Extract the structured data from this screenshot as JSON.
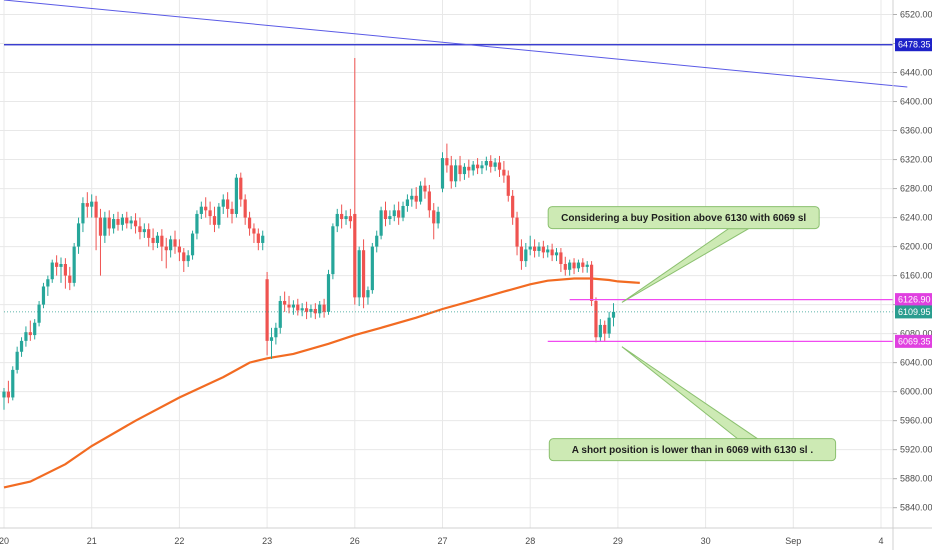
{
  "chart_data": {
    "type": "candlestick",
    "y_axis": {
      "ticks": [
        5840,
        5880,
        5920,
        5960,
        6000,
        6040,
        6080,
        6120,
        6160,
        6200,
        6240,
        6280,
        6320,
        6360,
        6400,
        6440,
        6480,
        6520
      ],
      "tick_labels": [
        "5840.00",
        "5880.00",
        "5920.00",
        "5960.00",
        "6000.00",
        "6040.00",
        "6080.00",
        "6120.00",
        "6160.00",
        "6200.00",
        "6240.00",
        "6280.00",
        "6320.00",
        "6360.00",
        "6400.00",
        "6440.00",
        "6480.00",
        "6520.00"
      ],
      "range": [
        5812,
        6540
      ],
      "position": "right"
    },
    "x_axis": {
      "labels": [
        "20",
        "21",
        "22",
        "23",
        "26",
        "27",
        "28",
        "29",
        "30",
        "Sep",
        "4"
      ],
      "label_positions": [
        0,
        1,
        2,
        3,
        4,
        5,
        6,
        7,
        8,
        9,
        10
      ]
    },
    "price_tags": [
      {
        "value": 6478.35,
        "label": "6478.35",
        "color": "#1e22c8"
      },
      {
        "value": 6126.9,
        "label": "6126.90",
        "color": "#e040e0"
      },
      {
        "value": 6109.95,
        "label": "6109.95",
        "color": "#2a9d8f"
      },
      {
        "value": 6069.35,
        "label": "6069.35",
        "color": "#e040e0"
      }
    ],
    "horizontal_lines": [
      {
        "value": 6478.35,
        "color": "#1e22c8",
        "from": 0.0,
        "to": 10.3
      },
      {
        "value": 6126.9,
        "color": "#f04af0",
        "from": 6.45,
        "to": 10.3
      },
      {
        "value": 6069.35,
        "color": "#f04af0",
        "from": 6.2,
        "to": 10.3
      },
      {
        "value": 6109.95,
        "color": "#2a9d8f",
        "from": 0.0,
        "to": 10.3,
        "dotted": true
      }
    ],
    "trend_line": {
      "color": "#5a5ae6",
      "points": [
        [
          0.0,
          6540
        ],
        [
          10.3,
          6420
        ]
      ]
    },
    "moving_average": {
      "color": "#f26b22",
      "points": [
        [
          0.0,
          5868
        ],
        [
          0.3,
          5876
        ],
        [
          0.7,
          5900
        ],
        [
          1.0,
          5925
        ],
        [
          1.5,
          5960
        ],
        [
          2.0,
          5992
        ],
        [
          2.5,
          6020
        ],
        [
          2.8,
          6040
        ],
        [
          3.0,
          6046
        ],
        [
          3.3,
          6052
        ],
        [
          3.7,
          6066
        ],
        [
          4.0,
          6078
        ],
        [
          4.3,
          6088
        ],
        [
          4.7,
          6102
        ],
        [
          5.0,
          6114
        ],
        [
          5.3,
          6124
        ],
        [
          5.7,
          6138
        ],
        [
          6.0,
          6148
        ],
        [
          6.2,
          6153
        ],
        [
          6.5,
          6156
        ],
        [
          6.7,
          6156
        ],
        [
          6.9,
          6154
        ],
        [
          7.0,
          6152
        ],
        [
          7.25,
          6150
        ]
      ]
    },
    "candles": [
      {
        "x": 0.0,
        "o": 5992,
        "h": 6005,
        "c": 6000,
        "l": 5975
      },
      {
        "x": 0.05,
        "o": 6000,
        "h": 6015,
        "c": 5992,
        "l": 5984
      },
      {
        "x": 0.1,
        "o": 5992,
        "h": 6035,
        "c": 6030,
        "l": 5988
      },
      {
        "x": 0.15,
        "o": 6030,
        "h": 6062,
        "c": 6055,
        "l": 6025
      },
      {
        "x": 0.2,
        "o": 6055,
        "h": 6075,
        "c": 6070,
        "l": 6048
      },
      {
        "x": 0.25,
        "o": 6070,
        "h": 6090,
        "c": 6082,
        "l": 6062
      },
      {
        "x": 0.3,
        "o": 6082,
        "h": 6098,
        "c": 6078,
        "l": 6070
      },
      {
        "x": 0.35,
        "o": 6078,
        "h": 6100,
        "c": 6095,
        "l": 6072
      },
      {
        "x": 0.4,
        "o": 6095,
        "h": 6125,
        "c": 6120,
        "l": 6090
      },
      {
        "x": 0.45,
        "o": 6120,
        "h": 6150,
        "c": 6145,
        "l": 6115
      },
      {
        "x": 0.5,
        "o": 6145,
        "h": 6160,
        "c": 6155,
        "l": 6132
      },
      {
        "x": 0.55,
        "o": 6155,
        "h": 6182,
        "c": 6178,
        "l": 6150
      },
      {
        "x": 0.6,
        "o": 6178,
        "h": 6188,
        "c": 6172,
        "l": 6160
      },
      {
        "x": 0.65,
        "o": 6172,
        "h": 6185,
        "c": 6176,
        "l": 6150
      },
      {
        "x": 0.7,
        "o": 6176,
        "h": 6184,
        "c": 6160,
        "l": 6142
      },
      {
        "x": 0.75,
        "o": 6160,
        "h": 6172,
        "c": 6150,
        "l": 6140
      },
      {
        "x": 0.8,
        "o": 6150,
        "h": 6205,
        "c": 6200,
        "l": 6145
      },
      {
        "x": 0.85,
        "o": 6200,
        "h": 6240,
        "c": 6232,
        "l": 6190
      },
      {
        "x": 0.9,
        "o": 6232,
        "h": 6268,
        "c": 6260,
        "l": 6220
      },
      {
        "x": 0.95,
        "o": 6260,
        "h": 6275,
        "c": 6255,
        "l": 6240
      },
      {
        "x": 1.0,
        "o": 6255,
        "h": 6272,
        "c": 6262,
        "l": 6240
      },
      {
        "x": 1.05,
        "o": 6262,
        "h": 6270,
        "c": 6240,
        "l": 6195
      },
      {
        "x": 1.1,
        "o": 6240,
        "h": 6252,
        "c": 6215,
        "l": 6160
      },
      {
        "x": 1.15,
        "o": 6215,
        "h": 6248,
        "c": 6240,
        "l": 6205
      },
      {
        "x": 1.2,
        "o": 6240,
        "h": 6250,
        "c": 6225,
        "l": 6215
      },
      {
        "x": 1.25,
        "o": 6225,
        "h": 6245,
        "c": 6238,
        "l": 6218
      },
      {
        "x": 1.3,
        "o": 6238,
        "h": 6248,
        "c": 6230,
        "l": 6222
      },
      {
        "x": 1.35,
        "o": 6230,
        "h": 6245,
        "c": 6240,
        "l": 6222
      },
      {
        "x": 1.4,
        "o": 6240,
        "h": 6248,
        "c": 6232,
        "l": 6225
      },
      {
        "x": 1.45,
        "o": 6232,
        "h": 6242,
        "c": 6236,
        "l": 6224
      },
      {
        "x": 1.5,
        "o": 6236,
        "h": 6246,
        "c": 6228,
        "l": 6218
      },
      {
        "x": 1.55,
        "o": 6228,
        "h": 6240,
        "c": 6220,
        "l": 6210
      },
      {
        "x": 1.6,
        "o": 6220,
        "h": 6232,
        "c": 6224,
        "l": 6212
      },
      {
        "x": 1.65,
        "o": 6224,
        "h": 6232,
        "c": 6212,
        "l": 6200
      },
      {
        "x": 1.7,
        "o": 6212,
        "h": 6225,
        "c": 6205,
        "l": 6195
      },
      {
        "x": 1.75,
        "o": 6205,
        "h": 6220,
        "c": 6215,
        "l": 6198
      },
      {
        "x": 1.8,
        "o": 6215,
        "h": 6224,
        "c": 6200,
        "l": 6180
      },
      {
        "x": 1.85,
        "o": 6200,
        "h": 6212,
        "c": 6195,
        "l": 6170
      },
      {
        "x": 1.9,
        "o": 6195,
        "h": 6215,
        "c": 6210,
        "l": 6185
      },
      {
        "x": 1.95,
        "o": 6210,
        "h": 6222,
        "c": 6200,
        "l": 6190
      },
      {
        "x": 2.0,
        "o": 6200,
        "h": 6210,
        "c": 6192,
        "l": 6180
      },
      {
        "x": 2.05,
        "o": 6192,
        "h": 6198,
        "c": 6180,
        "l": 6165
      },
      {
        "x": 2.1,
        "o": 6180,
        "h": 6195,
        "c": 6188,
        "l": 6172
      },
      {
        "x": 2.15,
        "o": 6188,
        "h": 6222,
        "c": 6218,
        "l": 6182
      },
      {
        "x": 2.2,
        "o": 6218,
        "h": 6250,
        "c": 6245,
        "l": 6210
      },
      {
        "x": 2.25,
        "o": 6245,
        "h": 6262,
        "c": 6255,
        "l": 6238
      },
      {
        "x": 2.3,
        "o": 6255,
        "h": 6268,
        "c": 6250,
        "l": 6240
      },
      {
        "x": 2.35,
        "o": 6250,
        "h": 6262,
        "c": 6242,
        "l": 6230
      },
      {
        "x": 2.4,
        "o": 6242,
        "h": 6255,
        "c": 6230,
        "l": 6220
      },
      {
        "x": 2.45,
        "o": 6230,
        "h": 6260,
        "c": 6255,
        "l": 6225
      },
      {
        "x": 2.5,
        "o": 6255,
        "h": 6272,
        "c": 6265,
        "l": 6245
      },
      {
        "x": 2.55,
        "o": 6265,
        "h": 6275,
        "c": 6252,
        "l": 6240
      },
      {
        "x": 2.6,
        "o": 6252,
        "h": 6262,
        "c": 6245,
        "l": 6232
      },
      {
        "x": 2.65,
        "o": 6245,
        "h": 6300,
        "c": 6295,
        "l": 6240
      },
      {
        "x": 2.7,
        "o": 6295,
        "h": 6302,
        "c": 6265,
        "l": 6255
      },
      {
        "x": 2.75,
        "o": 6265,
        "h": 6272,
        "c": 6240,
        "l": 6230
      },
      {
        "x": 2.8,
        "o": 6240,
        "h": 6248,
        "c": 6225,
        "l": 6215
      },
      {
        "x": 2.85,
        "o": 6225,
        "h": 6232,
        "c": 6218,
        "l": 6205
      },
      {
        "x": 2.9,
        "o": 6218,
        "h": 6225,
        "c": 6205,
        "l": 6195
      },
      {
        "x": 2.95,
        "o": 6205,
        "h": 6222,
        "c": 6215,
        "l": 6195
      },
      {
        "x": 3.0,
        "o": 6155,
        "h": 6165,
        "c": 6070,
        "l": 6050
      },
      {
        "x": 3.05,
        "o": 6070,
        "h": 6088,
        "c": 6075,
        "l": 6045
      },
      {
        "x": 3.1,
        "o": 6075,
        "h": 6095,
        "c": 6088,
        "l": 6065
      },
      {
        "x": 3.15,
        "o": 6088,
        "h": 6132,
        "c": 6125,
        "l": 6080
      },
      {
        "x": 3.2,
        "o": 6125,
        "h": 6138,
        "c": 6120,
        "l": 6110
      },
      {
        "x": 3.25,
        "o": 6120,
        "h": 6132,
        "c": 6116,
        "l": 6108
      },
      {
        "x": 3.3,
        "o": 6116,
        "h": 6126,
        "c": 6120,
        "l": 6106
      },
      {
        "x": 3.35,
        "o": 6120,
        "h": 6128,
        "c": 6112,
        "l": 6105
      },
      {
        "x": 3.4,
        "o": 6112,
        "h": 6122,
        "c": 6115,
        "l": 6104
      },
      {
        "x": 3.45,
        "o": 6115,
        "h": 6124,
        "c": 6110,
        "l": 6100
      },
      {
        "x": 3.5,
        "o": 6110,
        "h": 6120,
        "c": 6114,
        "l": 6102
      },
      {
        "x": 3.55,
        "o": 6114,
        "h": 6122,
        "c": 6108,
        "l": 6100
      },
      {
        "x": 3.6,
        "o": 6108,
        "h": 6125,
        "c": 6120,
        "l": 6102
      },
      {
        "x": 3.65,
        "o": 6120,
        "h": 6128,
        "c": 6110,
        "l": 6102
      },
      {
        "x": 3.7,
        "o": 6110,
        "h": 6168,
        "c": 6162,
        "l": 6106
      },
      {
        "x": 3.75,
        "o": 6162,
        "h": 6232,
        "c": 6228,
        "l": 6155
      },
      {
        "x": 3.8,
        "o": 6228,
        "h": 6252,
        "c": 6245,
        "l": 6220
      },
      {
        "x": 3.85,
        "o": 6245,
        "h": 6258,
        "c": 6238,
        "l": 6225
      },
      {
        "x": 3.9,
        "o": 6238,
        "h": 6250,
        "c": 6242,
        "l": 6230
      },
      {
        "x": 3.95,
        "o": 6242,
        "h": 6252,
        "c": 6235,
        "l": 6225
      },
      {
        "x": 4.0,
        "o": 6245,
        "h": 6460,
        "c": 6130,
        "l": 6120
      },
      {
        "x": 4.05,
        "o": 6130,
        "h": 6200,
        "c": 6195,
        "l": 6118
      },
      {
        "x": 4.1,
        "o": 6195,
        "h": 6210,
        "c": 6130,
        "l": 6115
      },
      {
        "x": 4.15,
        "o": 6130,
        "h": 6145,
        "c": 6140,
        "l": 6120
      },
      {
        "x": 4.2,
        "o": 6140,
        "h": 6205,
        "c": 6200,
        "l": 6135
      },
      {
        "x": 4.25,
        "o": 6200,
        "h": 6222,
        "c": 6215,
        "l": 6192
      },
      {
        "x": 4.3,
        "o": 6215,
        "h": 6255,
        "c": 6250,
        "l": 6210
      },
      {
        "x": 4.35,
        "o": 6250,
        "h": 6262,
        "c": 6238,
        "l": 6228
      },
      {
        "x": 4.4,
        "o": 6238,
        "h": 6250,
        "c": 6242,
        "l": 6230
      },
      {
        "x": 4.45,
        "o": 6242,
        "h": 6258,
        "c": 6250,
        "l": 6235
      },
      {
        "x": 4.5,
        "o": 6250,
        "h": 6262,
        "c": 6240,
        "l": 6230
      },
      {
        "x": 4.55,
        "o": 6240,
        "h": 6262,
        "c": 6256,
        "l": 6235
      },
      {
        "x": 4.6,
        "o": 6256,
        "h": 6272,
        "c": 6265,
        "l": 6248
      },
      {
        "x": 4.65,
        "o": 6265,
        "h": 6280,
        "c": 6270,
        "l": 6255
      },
      {
        "x": 4.7,
        "o": 6270,
        "h": 6282,
        "c": 6262,
        "l": 6252
      },
      {
        "x": 4.75,
        "o": 6262,
        "h": 6290,
        "c": 6284,
        "l": 6258
      },
      {
        "x": 4.8,
        "o": 6284,
        "h": 6295,
        "c": 6276,
        "l": 6266
      },
      {
        "x": 4.85,
        "o": 6276,
        "h": 6285,
        "c": 6250,
        "l": 6240
      },
      {
        "x": 4.9,
        "o": 6250,
        "h": 6260,
        "c": 6232,
        "l": 6210
      },
      {
        "x": 4.95,
        "o": 6232,
        "h": 6255,
        "c": 6248,
        "l": 6225
      },
      {
        "x": 5.0,
        "o": 6280,
        "h": 6330,
        "c": 6322,
        "l": 6275
      },
      {
        "x": 5.05,
        "o": 6322,
        "h": 6342,
        "c": 6312,
        "l": 6302
      },
      {
        "x": 5.1,
        "o": 6312,
        "h": 6325,
        "c": 6290,
        "l": 6280
      },
      {
        "x": 5.15,
        "o": 6290,
        "h": 6320,
        "c": 6312,
        "l": 6282
      },
      {
        "x": 5.2,
        "o": 6312,
        "h": 6325,
        "c": 6300,
        "l": 6290
      },
      {
        "x": 5.25,
        "o": 6300,
        "h": 6315,
        "c": 6310,
        "l": 6292
      },
      {
        "x": 5.3,
        "o": 6310,
        "h": 6320,
        "c": 6305,
        "l": 6295
      },
      {
        "x": 5.35,
        "o": 6305,
        "h": 6318,
        "c": 6313,
        "l": 6298
      },
      {
        "x": 5.4,
        "o": 6313,
        "h": 6322,
        "c": 6308,
        "l": 6300
      },
      {
        "x": 5.45,
        "o": 6308,
        "h": 6318,
        "c": 6312,
        "l": 6300
      },
      {
        "x": 5.5,
        "o": 6312,
        "h": 6324,
        "c": 6318,
        "l": 6305
      },
      {
        "x": 5.55,
        "o": 6318,
        "h": 6326,
        "c": 6310,
        "l": 6302
      },
      {
        "x": 5.6,
        "o": 6310,
        "h": 6322,
        "c": 6316,
        "l": 6304
      },
      {
        "x": 5.65,
        "o": 6316,
        "h": 6325,
        "c": 6306,
        "l": 6296
      },
      {
        "x": 5.7,
        "o": 6306,
        "h": 6318,
        "c": 6298,
        "l": 6288
      },
      {
        "x": 5.75,
        "o": 6298,
        "h": 6305,
        "c": 6270,
        "l": 6262
      },
      {
        "x": 5.8,
        "o": 6270,
        "h": 6278,
        "c": 6240,
        "l": 6230
      },
      {
        "x": 5.85,
        "o": 6240,
        "h": 6248,
        "c": 6200,
        "l": 6188
      },
      {
        "x": 5.9,
        "o": 6200,
        "h": 6210,
        "c": 6180,
        "l": 6168
      },
      {
        "x": 5.95,
        "o": 6180,
        "h": 6205,
        "c": 6196,
        "l": 6172
      },
      {
        "x": 6.0,
        "o": 6196,
        "h": 6215,
        "c": 6200,
        "l": 6188
      },
      {
        "x": 6.05,
        "o": 6200,
        "h": 6210,
        "c": 6194,
        "l": 6185
      },
      {
        "x": 6.1,
        "o": 6194,
        "h": 6206,
        "c": 6200,
        "l": 6186
      },
      {
        "x": 6.15,
        "o": 6200,
        "h": 6208,
        "c": 6192,
        "l": 6184
      },
      {
        "x": 6.2,
        "o": 6192,
        "h": 6202,
        "c": 6196,
        "l": 6185
      },
      {
        "x": 6.25,
        "o": 6196,
        "h": 6204,
        "c": 6188,
        "l": 6180
      },
      {
        "x": 6.3,
        "o": 6188,
        "h": 6198,
        "c": 6192,
        "l": 6180
      },
      {
        "x": 6.35,
        "o": 6192,
        "h": 6198,
        "c": 6176,
        "l": 6165
      },
      {
        "x": 6.4,
        "o": 6176,
        "h": 6186,
        "c": 6168,
        "l": 6160
      },
      {
        "x": 6.45,
        "o": 6168,
        "h": 6182,
        "c": 6178,
        "l": 6160
      },
      {
        "x": 6.5,
        "o": 6178,
        "h": 6184,
        "c": 6170,
        "l": 6162
      },
      {
        "x": 6.55,
        "o": 6170,
        "h": 6182,
        "c": 6178,
        "l": 6165
      },
      {
        "x": 6.6,
        "o": 6178,
        "h": 6184,
        "c": 6172,
        "l": 6164
      },
      {
        "x": 6.65,
        "o": 6172,
        "h": 6180,
        "c": 6175,
        "l": 6164
      },
      {
        "x": 6.7,
        "o": 6175,
        "h": 6180,
        "c": 6125,
        "l": 6118
      },
      {
        "x": 6.75,
        "o": 6125,
        "h": 6130,
        "c": 6075,
        "l": 6068
      },
      {
        "x": 6.8,
        "o": 6075,
        "h": 6100,
        "c": 6092,
        "l": 6070
      },
      {
        "x": 6.85,
        "o": 6092,
        "h": 6098,
        "c": 6080,
        "l": 6070
      },
      {
        "x": 6.9,
        "o": 6080,
        "h": 6110,
        "c": 6102,
        "l": 6074
      },
      {
        "x": 6.95,
        "o": 6102,
        "h": 6122,
        "c": 6110,
        "l": 6090
      }
    ],
    "annotations": [
      {
        "text": "Considering a buy Position above 6130 with 6069 sl",
        "x": 7.75,
        "y": 6240,
        "pointer": [
          7.0,
          6123
        ]
      },
      {
        "text": "A short position is lower than in 6069 with 6130 sl .",
        "x": 7.85,
        "y": 5920,
        "pointer": [
          7.0,
          6062
        ]
      }
    ],
    "colors": {
      "up": "#26a69a",
      "down": "#ef5350",
      "grid": "#e8e8e8",
      "note_bg": "#cdeab4",
      "note_border": "#8bc06f"
    }
  }
}
